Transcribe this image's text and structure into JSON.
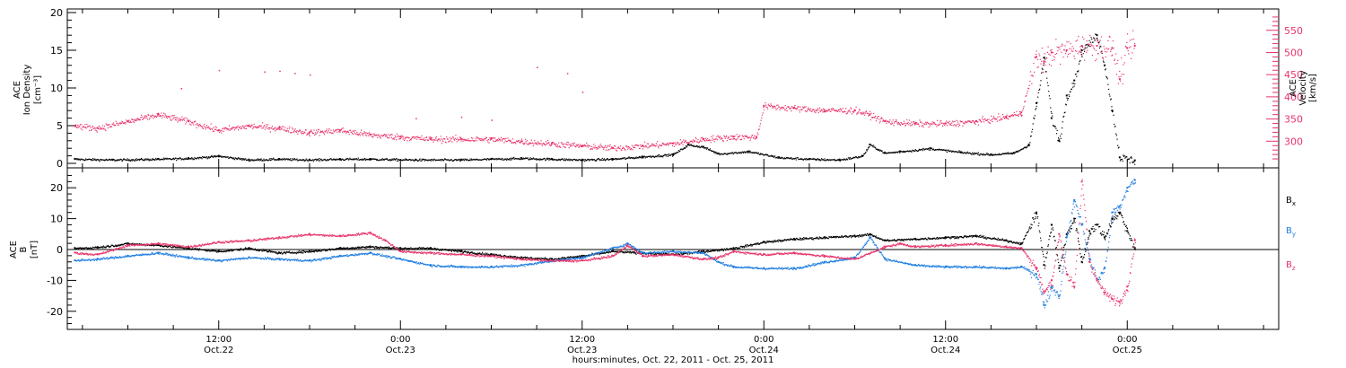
{
  "colors": {
    "black": "#000000",
    "pink": "#e8336a",
    "blue": "#1f7ee0"
  },
  "x_axis": {
    "label": "hours:minutes, Oct. 22, 2011 - Oct. 25, 2011",
    "ticks": [
      {
        "time": "12:00",
        "date": "Oct.22",
        "hour": 12
      },
      {
        "time": "0:00",
        "date": "Oct.23",
        "hour": 24
      },
      {
        "time": "12:00",
        "date": "Oct.23",
        "hour": 36
      },
      {
        "time": "0:00",
        "date": "Oct.24",
        "hour": 48
      },
      {
        "time": "12:00",
        "date": "Oct.24",
        "hour": 60
      },
      {
        "time": "0:00",
        "date": "Oct.25",
        "hour": 72
      }
    ],
    "range_hours": [
      2,
      82
    ]
  },
  "chart_data": [
    {
      "type": "scatter",
      "panel": "top",
      "left_axis": {
        "label_lines": [
          "ACE",
          "Ion Density",
          "[cm⁻³]"
        ],
        "ticks": [
          "0",
          "5",
          "10",
          "15",
          "20"
        ],
        "ylim": [
          0,
          20
        ]
      },
      "right_axis": {
        "label_lines": [
          "ACE",
          "Velocity",
          "[km/s]"
        ],
        "ticks": [
          "300",
          "350",
          "400",
          "450",
          "500",
          "550"
        ],
        "ylim": [
          250,
          590
        ]
      },
      "series": [
        {
          "color": "#000000",
          "axis": "left",
          "points": [
            [
              2.5,
              0.6
            ],
            [
              5,
              0.5
            ],
            [
              8,
              0.6
            ],
            [
              10,
              0.7
            ],
            [
              12,
              1.0
            ],
            [
              14,
              0.5
            ],
            [
              16,
              0.6
            ],
            [
              18,
              0.5
            ],
            [
              20,
              0.6
            ],
            [
              22,
              0.6
            ],
            [
              25,
              0.5
            ],
            [
              28,
              0.5
            ],
            [
              30,
              0.6
            ],
            [
              32,
              0.7
            ],
            [
              34,
              0.6
            ],
            [
              36,
              0.5
            ],
            [
              38,
              0.6
            ],
            [
              40,
              0.9
            ],
            [
              42,
              1.2
            ],
            [
              43,
              2.5
            ],
            [
              44,
              2.2
            ],
            [
              45,
              1.3
            ],
            [
              47,
              1.6
            ],
            [
              49,
              0.8
            ],
            [
              51,
              0.6
            ],
            [
              53,
              0.5
            ],
            [
              54.5,
              1.0
            ],
            [
              55,
              2.5
            ],
            [
              56,
              1.4
            ],
            [
              57,
              1.6
            ],
            [
              59,
              2.0
            ],
            [
              61,
              1.5
            ],
            [
              63,
              1.2
            ],
            [
              64.5,
              1.4
            ],
            [
              65.5,
              2.5
            ],
            [
              66,
              8
            ],
            [
              66.5,
              14
            ],
            [
              67,
              6
            ],
            [
              67.5,
              3
            ],
            [
              68,
              9
            ],
            [
              68.5,
              11
            ],
            [
              69,
              15
            ],
            [
              70,
              17
            ],
            [
              70.5,
              13
            ],
            [
              71,
              7
            ],
            [
              71.5,
              0.8
            ],
            [
              72.5,
              0.4
            ]
          ]
        },
        {
          "color": "#e8336a",
          "axis": "right",
          "points": [
            [
              2.5,
              335
            ],
            [
              4,
              330
            ],
            [
              6,
              345
            ],
            [
              8,
              360
            ],
            [
              10,
              345
            ],
            [
              12,
              325
            ],
            [
              14,
              335
            ],
            [
              16,
              330
            ],
            [
              18,
              320
            ],
            [
              20,
              325
            ],
            [
              22,
              315
            ],
            [
              24,
              310
            ],
            [
              26,
              305
            ],
            [
              28,
              305
            ],
            [
              30,
              305
            ],
            [
              32,
              300
            ],
            [
              34,
              295
            ],
            [
              36,
              290
            ],
            [
              38,
              285
            ],
            [
              40,
              290
            ],
            [
              42,
              295
            ],
            [
              44,
              305
            ],
            [
              46,
              310
            ],
            [
              47.5,
              310
            ],
            [
              48,
              380
            ],
            [
              50,
              375
            ],
            [
              52,
              370
            ],
            [
              54,
              370
            ],
            [
              55,
              360
            ],
            [
              56,
              345
            ],
            [
              58,
              340
            ],
            [
              60,
              340
            ],
            [
              62,
              345
            ],
            [
              64,
              355
            ],
            [
              65,
              365
            ],
            [
              66,
              490
            ],
            [
              66.5,
              480
            ],
            [
              67,
              500
            ],
            [
              68,
              505
            ],
            [
              69,
              515
            ],
            [
              70,
              515
            ],
            [
              71,
              510
            ],
            [
              71.5,
              440
            ],
            [
              72,
              510
            ],
            [
              72.5,
              515
            ]
          ]
        }
      ],
      "scatter_points": [
        {
          "color": "#e8336a",
          "axis": "left",
          "points": [
            [
              9.5,
              10
            ],
            [
              12,
              12.4
            ],
            [
              15,
              12.2
            ],
            [
              16,
              12.3
            ],
            [
              17,
              12.0
            ],
            [
              18,
              11.8
            ],
            [
              33,
              12.8
            ],
            [
              35,
              12.0
            ],
            [
              36,
              9.5
            ],
            [
              25,
              6.0
            ],
            [
              28,
              6.2
            ],
            [
              30,
              5.8
            ]
          ]
        }
      ]
    },
    {
      "type": "scatter",
      "panel": "bottom",
      "left_axis": {
        "label_lines": [
          "ACE",
          "B",
          "[nT]"
        ],
        "ticks": [
          "-20",
          "-10",
          "0",
          "10",
          "20"
        ],
        "ylim": [
          -25,
          25
        ]
      },
      "zero_line": true,
      "series": [
        {
          "name": "Bx",
          "color": "#000000",
          "points": [
            [
              2.5,
              0.5
            ],
            [
              4,
              0.8
            ],
            [
              6,
              2.0
            ],
            [
              8,
              1.5
            ],
            [
              10,
              0.5
            ],
            [
              12,
              -0.5
            ],
            [
              14,
              0.5
            ],
            [
              16,
              -1.0
            ],
            [
              18,
              -0.5
            ],
            [
              20,
              0.5
            ],
            [
              22,
              1.0
            ],
            [
              24,
              0.5
            ],
            [
              26,
              0.5
            ],
            [
              28,
              -0.5
            ],
            [
              30,
              -1.5
            ],
            [
              32,
              -2.5
            ],
            [
              34,
              -3.0
            ],
            [
              36,
              -2.0
            ],
            [
              38,
              -0.5
            ],
            [
              40,
              -1.0
            ],
            [
              42,
              -1.5
            ],
            [
              44,
              -0.5
            ],
            [
              46,
              0.5
            ],
            [
              48,
              2.5
            ],
            [
              50,
              3.5
            ],
            [
              52,
              4.0
            ],
            [
              54,
              4.5
            ],
            [
              55,
              5.0
            ],
            [
              56,
              3.0
            ],
            [
              58,
              3.5
            ],
            [
              60,
              4.0
            ],
            [
              62,
              4.5
            ],
            [
              64,
              3.0
            ],
            [
              65,
              2.0
            ],
            [
              66,
              12
            ],
            [
              66.5,
              -5
            ],
            [
              67,
              8
            ],
            [
              67.5,
              -6
            ],
            [
              68,
              5
            ],
            [
              68.5,
              10
            ],
            [
              69,
              -4
            ],
            [
              69.5,
              6
            ],
            [
              70,
              8
            ],
            [
              70.5,
              4
            ],
            [
              71,
              10
            ],
            [
              71.5,
              12
            ],
            [
              72,
              6
            ],
            [
              72.5,
              0.5
            ]
          ]
        },
        {
          "name": "By",
          "color": "#1f7ee0",
          "points": [
            [
              2.5,
              -3.5
            ],
            [
              4,
              -3.0
            ],
            [
              6,
              -2.0
            ],
            [
              8,
              -1.0
            ],
            [
              10,
              -2.5
            ],
            [
              12,
              -3.5
            ],
            [
              14,
              -2.5
            ],
            [
              16,
              -3.0
            ],
            [
              18,
              -3.5
            ],
            [
              20,
              -2.0
            ],
            [
              22,
              -1.0
            ],
            [
              24,
              -3.0
            ],
            [
              26,
              -5.0
            ],
            [
              28,
              -5.5
            ],
            [
              30,
              -5.5
            ],
            [
              32,
              -5.0
            ],
            [
              34,
              -3.5
            ],
            [
              36,
              -2.5
            ],
            [
              38,
              0.5
            ],
            [
              39,
              2.0
            ],
            [
              40,
              -1.0
            ],
            [
              42,
              -0.5
            ],
            [
              44,
              -1.0
            ],
            [
              45,
              -4.0
            ],
            [
              46,
              -5.5
            ],
            [
              48,
              -6.0
            ],
            [
              50,
              -6.0
            ],
            [
              52,
              -4.0
            ],
            [
              54,
              -2.5
            ],
            [
              55,
              4.0
            ],
            [
              56,
              -3.0
            ],
            [
              58,
              -5.0
            ],
            [
              60,
              -5.5
            ],
            [
              62,
              -5.5
            ],
            [
              64,
              -6.0
            ],
            [
              65,
              -5.5
            ],
            [
              66,
              -8
            ],
            [
              66.5,
              -18
            ],
            [
              67,
              -12
            ],
            [
              67.5,
              -15
            ],
            [
              68,
              4
            ],
            [
              68.5,
              16
            ],
            [
              69,
              8
            ],
            [
              69.5,
              -3
            ],
            [
              70,
              -10
            ],
            [
              70.5,
              -6
            ],
            [
              71,
              12
            ],
            [
              71.5,
              14
            ],
            [
              72,
              20
            ],
            [
              72.5,
              22.5
            ]
          ]
        },
        {
          "name": "Bz",
          "color": "#e8336a",
          "points": [
            [
              2.5,
              -1.0
            ],
            [
              4,
              -1.5
            ],
            [
              6,
              1.5
            ],
            [
              8,
              2.0
            ],
            [
              10,
              1.0
            ],
            [
              12,
              2.5
            ],
            [
              14,
              3.0
            ],
            [
              16,
              4.0
            ],
            [
              18,
              5.0
            ],
            [
              20,
              4.5
            ],
            [
              22,
              5.5
            ],
            [
              23,
              3.0
            ],
            [
              24,
              -0.5
            ],
            [
              26,
              -1.0
            ],
            [
              28,
              -1.5
            ],
            [
              30,
              -2.0
            ],
            [
              32,
              -3.0
            ],
            [
              34,
              -3.5
            ],
            [
              36,
              -3.5
            ],
            [
              38,
              -2.0
            ],
            [
              39,
              1.5
            ],
            [
              40,
              -2.0
            ],
            [
              42,
              -1.5
            ],
            [
              44,
              -3.0
            ],
            [
              45,
              -2.5
            ],
            [
              46,
              -0.5
            ],
            [
              48,
              -1.5
            ],
            [
              50,
              -1.0
            ],
            [
              52,
              -2.0
            ],
            [
              54,
              -3.0
            ],
            [
              56,
              1.0
            ],
            [
              57,
              2.0
            ],
            [
              58,
              1.0
            ],
            [
              60,
              1.5
            ],
            [
              62,
              2.0
            ],
            [
              64,
              1.0
            ],
            [
              65,
              0.5
            ],
            [
              66,
              -6
            ],
            [
              66.5,
              -14
            ],
            [
              67,
              -10
            ],
            [
              67.5,
              5
            ],
            [
              68,
              -8
            ],
            [
              68.5,
              -12
            ],
            [
              69,
              22
            ],
            [
              69.5,
              -4
            ],
            [
              70,
              -10
            ],
            [
              70.5,
              -14
            ],
            [
              71,
              -16
            ],
            [
              71.5,
              -17
            ],
            [
              72,
              -12
            ],
            [
              72.5,
              3
            ]
          ]
        }
      ]
    }
  ]
}
